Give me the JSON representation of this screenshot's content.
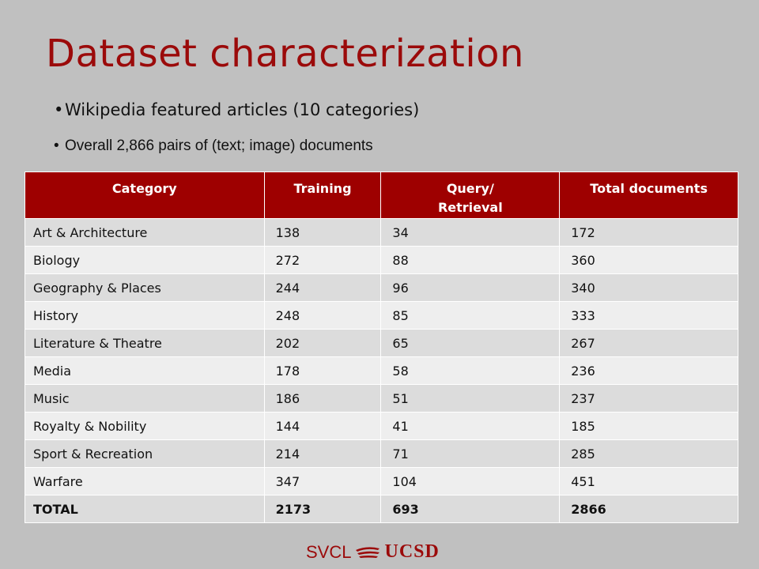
{
  "slide": {
    "title": "Dataset characterization",
    "bullets": [
      "Wikipedia featured articles (10 categories)",
      "Overall 2,866 pairs of (text; image) documents"
    ]
  },
  "table": {
    "headers": [
      "Category",
      "Training",
      "Query/ Retrieval",
      "Total documents"
    ],
    "rows": [
      [
        "Art & Architecture",
        "138",
        "34",
        "172"
      ],
      [
        "Biology",
        "272",
        "88",
        "360"
      ],
      [
        "Geography & Places",
        "244",
        "96",
        "340"
      ],
      [
        "History",
        "248",
        "85",
        "333"
      ],
      [
        "Literature & Theatre",
        "202",
        "65",
        "267"
      ],
      [
        "Media",
        "178",
        "58",
        "236"
      ],
      [
        "Music",
        "186",
        "51",
        "237"
      ],
      [
        "Royalty & Nobility",
        "144",
        "41",
        "185"
      ],
      [
        "Sport & Recreation",
        "214",
        "71",
        "285"
      ],
      [
        "Warfare",
        "347",
        "104",
        "451"
      ]
    ],
    "total": [
      "TOTAL",
      "2173",
      "693",
      "2866"
    ]
  },
  "footer": {
    "logo_left": "SVCL",
    "logo_right": "UCSD",
    "logo_icon": "ucsd-swoosh-icon"
  },
  "colors": {
    "accent": "#9e0000",
    "background": "#c0c0c0"
  }
}
